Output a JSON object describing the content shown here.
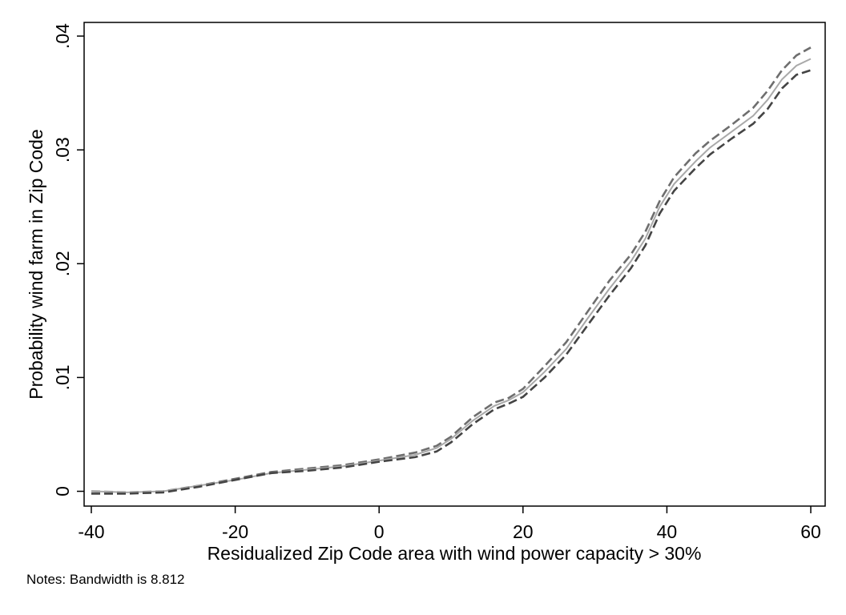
{
  "chart_data": {
    "type": "line",
    "xlabel": "Residualized Zip Code area with wind power capacity > 30%",
    "ylabel": "Probability wind farm in Zip Code",
    "xlim": [
      -41,
      62
    ],
    "ylim": [
      -0.0013,
      0.0412
    ],
    "x_ticks": [
      -40,
      -20,
      0,
      20,
      40,
      60
    ],
    "x_tick_labels": [
      "-40",
      "-20",
      "0",
      "20",
      "40",
      "60"
    ],
    "y_ticks": [
      0,
      0.01,
      0.02,
      0.03,
      0.04
    ],
    "y_tick_labels": [
      "0",
      ".01",
      ".02",
      ".03",
      ".04"
    ],
    "grid": false,
    "series": [
      {
        "style": "dashed",
        "color": "#6e6e6e",
        "x": [
          -40,
          -35,
          -30,
          -25,
          -20,
          -15,
          -10,
          -5,
          0,
          5,
          8,
          10,
          13,
          16,
          18,
          20,
          23,
          26,
          29,
          32,
          35,
          37,
          39,
          41,
          44,
          46,
          49,
          52,
          54,
          56,
          58,
          60
        ],
        "y": [
          0.0,
          -0.0001,
          0.0,
          0.0005,
          0.0011,
          0.0017,
          0.002,
          0.0023,
          0.0028,
          0.0034,
          0.004,
          0.0048,
          0.0065,
          0.0078,
          0.0082,
          0.009,
          0.011,
          0.0131,
          0.0158,
          0.0185,
          0.0208,
          0.0228,
          0.0255,
          0.0276,
          0.0297,
          0.0308,
          0.0322,
          0.0337,
          0.0352,
          0.037,
          0.0383,
          0.039
        ]
      },
      {
        "style": "solid",
        "color": "#a9a9a9",
        "x": [
          -40,
          -35,
          -30,
          -25,
          -20,
          -15,
          -10,
          -5,
          0,
          5,
          8,
          10,
          13,
          16,
          18,
          20,
          23,
          26,
          29,
          32,
          35,
          37,
          39,
          41,
          44,
          46,
          49,
          52,
          54,
          56,
          58,
          60
        ],
        "y": [
          0.0,
          -0.0001,
          0.0,
          0.0005,
          0.001,
          0.0016,
          0.0019,
          0.0022,
          0.0027,
          0.0032,
          0.0038,
          0.0046,
          0.0062,
          0.0075,
          0.008,
          0.0087,
          0.0105,
          0.0125,
          0.0152,
          0.0178,
          0.0202,
          0.0222,
          0.025,
          0.027,
          0.029,
          0.0302,
          0.0316,
          0.033,
          0.0344,
          0.0362,
          0.0374,
          0.038
        ]
      },
      {
        "style": "dashed",
        "color": "#444444",
        "x": [
          -40,
          -35,
          -30,
          -25,
          -20,
          -15,
          -10,
          -5,
          0,
          5,
          8,
          10,
          13,
          16,
          18,
          20,
          23,
          26,
          29,
          32,
          35,
          37,
          39,
          41,
          44,
          46,
          49,
          52,
          54,
          56,
          58,
          60
        ],
        "y": [
          -0.0002,
          -0.0002,
          -0.0001,
          0.0004,
          0.001,
          0.0016,
          0.0018,
          0.0021,
          0.0026,
          0.003,
          0.0035,
          0.0043,
          0.0059,
          0.0072,
          0.0077,
          0.0083,
          0.01,
          0.012,
          0.0146,
          0.0172,
          0.0196,
          0.0216,
          0.0244,
          0.0264,
          0.0284,
          0.0296,
          0.031,
          0.0323,
          0.0336,
          0.0354,
          0.0366,
          0.037
        ]
      }
    ]
  },
  "note": "Notes: Bandwidth is 8.812"
}
